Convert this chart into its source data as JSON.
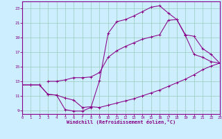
{
  "bg_color": "#cceeff",
  "grid_color": "#99ccbb",
  "line_color": "#880088",
  "xlim": [
    0,
    23
  ],
  "ylim": [
    8.5,
    24.0
  ],
  "xticks": [
    0,
    1,
    2,
    3,
    4,
    5,
    6,
    7,
    8,
    9,
    10,
    11,
    12,
    13,
    14,
    15,
    16,
    17,
    18,
    19,
    20,
    21,
    22,
    23
  ],
  "yticks": [
    9,
    11,
    13,
    15,
    17,
    19,
    21,
    23
  ],
  "xlabel": "Windchill (Refroidissement éolien,°C)",
  "line1_x": [
    0,
    1,
    2,
    3,
    4,
    5,
    6,
    7,
    8,
    9,
    10,
    11,
    12,
    13,
    14,
    15,
    16,
    17,
    18,
    19,
    20,
    21,
    22,
    23
  ],
  "line1_y": [
    12.5,
    12.5,
    12.5,
    11.2,
    11.1,
    10.7,
    10.4,
    9.4,
    9.5,
    9.4,
    9.7,
    10.0,
    10.3,
    10.6,
    11.0,
    11.4,
    11.8,
    12.3,
    12.8,
    13.3,
    13.9,
    14.6,
    15.1,
    15.5
  ],
  "line2_x": [
    0,
    1,
    2,
    3,
    4,
    5,
    6,
    7,
    8,
    9,
    10,
    11,
    12,
    13,
    14,
    15,
    16,
    17,
    18,
    19,
    20,
    21,
    22,
    23
  ],
  "line2_y": [
    12.5,
    12.5,
    12.5,
    11.2,
    11.1,
    9.1,
    8.9,
    8.9,
    9.4,
    13.1,
    19.6,
    21.2,
    21.5,
    22.0,
    22.6,
    23.2,
    23.4,
    22.4,
    21.5,
    19.3,
    16.7,
    16.3,
    15.7,
    15.5
  ],
  "line3_x": [
    3,
    4,
    5,
    6,
    7,
    8,
    9,
    10,
    11,
    12,
    13,
    14,
    15,
    16,
    17,
    18,
    19,
    20,
    21,
    22,
    23
  ],
  "line3_y": [
    13.0,
    13.0,
    13.2,
    13.5,
    13.5,
    13.6,
    14.2,
    16.3,
    17.2,
    17.8,
    18.3,
    18.8,
    19.1,
    19.4,
    21.4,
    21.5,
    19.4,
    19.2,
    17.5,
    16.7,
    15.5
  ]
}
